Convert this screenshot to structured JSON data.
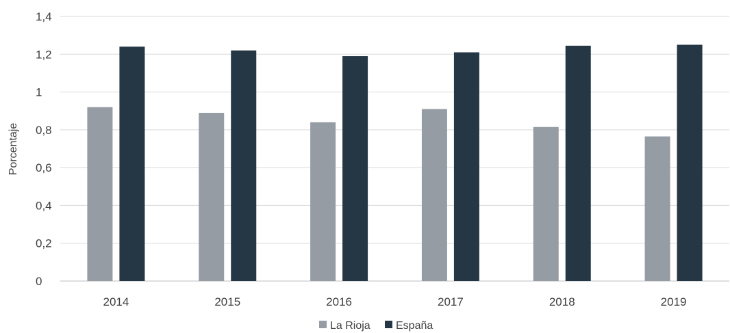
{
  "chart_data": {
    "type": "bar",
    "categories": [
      "2014",
      "2015",
      "2016",
      "2017",
      "2018",
      "2019"
    ],
    "series": [
      {
        "name": "La Rioja",
        "color": "#959ca3",
        "values": [
          0.92,
          0.89,
          0.84,
          0.91,
          0.815,
          0.765
        ]
      },
      {
        "name": "España",
        "color": "#253645",
        "values": [
          1.24,
          1.22,
          1.19,
          1.21,
          1.245,
          1.25
        ]
      }
    ],
    "ylabel": "Porcentaje",
    "ylim": [
      0,
      1.4
    ],
    "yticks": [
      0,
      0.2,
      0.4,
      0.6,
      0.8,
      1,
      1.2,
      1.4
    ],
    "ytick_labels": [
      "0",
      "0,2",
      "0,4",
      "0,6",
      "0,8",
      "1",
      "1,2",
      "1,4"
    ],
    "grid": true,
    "legend_position": "bottom"
  }
}
